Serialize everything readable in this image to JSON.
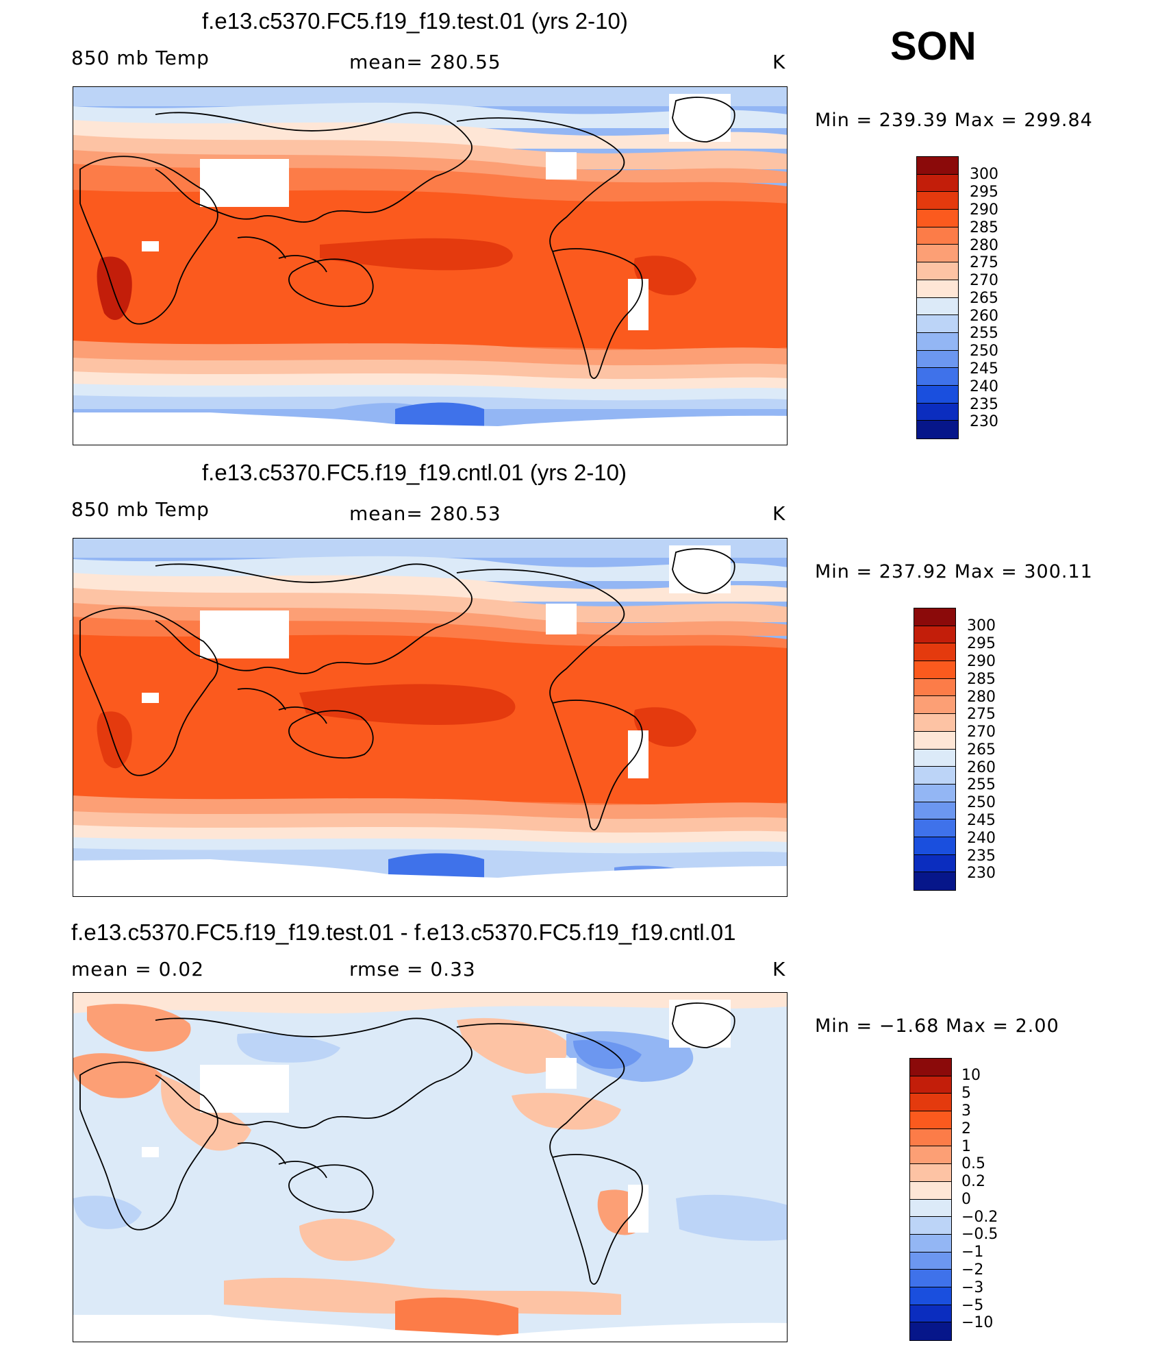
{
  "season": "SON",
  "chart_data": [
    {
      "type": "heatmap",
      "panel": "test",
      "title": "f.e13.c5370.FC5.f19_f19.test.01 (yrs 2-10)",
      "variable": "850 mb Temp",
      "mean_label": "mean= 280.55",
      "units": "K",
      "range_label": "Min = 239.39 Max = 299.84",
      "min": 239.39,
      "max": 299.84,
      "colorbar_levels": [
        "300",
        "295",
        "290",
        "285",
        "280",
        "275",
        "270",
        "265",
        "260",
        "255",
        "250",
        "245",
        "240",
        "235",
        "230"
      ],
      "colorbar_colors": [
        "#8b0a0a",
        "#c31e0a",
        "#e43a0e",
        "#fb5a1e",
        "#fc7c48",
        "#fc9f75",
        "#fdc3a4",
        "#fee6d6",
        "#dceaf8",
        "#bcd4f7",
        "#93b6f4",
        "#6c97f0",
        "#3f72ea",
        "#1a4fde",
        "#0b2dbf",
        "#06168a"
      ]
    },
    {
      "type": "heatmap",
      "panel": "control",
      "title": "f.e13.c5370.FC5.f19_f19.cntl.01 (yrs 2-10)",
      "variable": "850 mb Temp",
      "mean_label": "mean= 280.53",
      "units": "K",
      "range_label": "Min = 237.92 Max = 300.11",
      "min": 237.92,
      "max": 300.11,
      "colorbar_levels": [
        "300",
        "295",
        "290",
        "285",
        "280",
        "275",
        "270",
        "265",
        "260",
        "255",
        "250",
        "245",
        "240",
        "235",
        "230"
      ],
      "colorbar_colors": [
        "#8b0a0a",
        "#c31e0a",
        "#e43a0e",
        "#fb5a1e",
        "#fc7c48",
        "#fc9f75",
        "#fdc3a4",
        "#fee6d6",
        "#dceaf8",
        "#bcd4f7",
        "#93b6f4",
        "#6c97f0",
        "#3f72ea",
        "#1a4fde",
        "#0b2dbf",
        "#06168a"
      ]
    },
    {
      "type": "heatmap",
      "panel": "difference",
      "title": "f.e13.c5370.FC5.f19_f19.test.01 - f.e13.c5370.FC5.f19_f19.cntl.01",
      "mean_label": "mean = 0.02",
      "rmse_label": "rmse = 0.33",
      "units": "K",
      "range_label": "Min = −1.68 Max = 2.00",
      "min": -1.68,
      "max": 2.0,
      "colorbar_levels": [
        "10",
        "5",
        "3",
        "2",
        "1",
        "0.5",
        "0.2",
        "0",
        "−0.2",
        "−0.5",
        "−1",
        "−2",
        "−3",
        "−5",
        "−10"
      ],
      "colorbar_colors": [
        "#8b0a0a",
        "#c31e0a",
        "#e43a0e",
        "#fb5a1e",
        "#fc7c48",
        "#fc9f75",
        "#fdc3a4",
        "#fee6d6",
        "#dceaf8",
        "#bcd4f7",
        "#93b6f4",
        "#6c97f0",
        "#3f72ea",
        "#1a4fde",
        "#0b2dbf",
        "#06168a"
      ]
    }
  ]
}
